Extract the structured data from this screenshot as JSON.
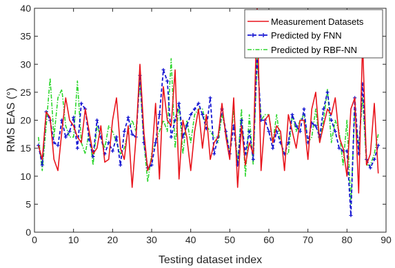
{
  "chart_data": {
    "type": "line",
    "xlabel": "Testing dataset index",
    "ylabel": "RMS EAS (°)",
    "xlim": [
      0,
      90
    ],
    "ylim": [
      0,
      40
    ],
    "xticks": [
      0,
      10,
      20,
      30,
      40,
      50,
      60,
      70,
      80,
      90
    ],
    "yticks": [
      0,
      5,
      10,
      15,
      20,
      25,
      30,
      35,
      40
    ],
    "grid": false,
    "legend_position": "top-right",
    "series": [
      {
        "name": "Measurement Datasets",
        "color": "#e8141c",
        "style": "solid",
        "x": [
          1,
          2,
          3,
          4,
          5,
          6,
          7,
          8,
          9,
          10,
          11,
          12,
          13,
          14,
          15,
          16,
          17,
          18,
          19,
          20,
          21,
          22,
          23,
          24,
          25,
          26,
          27,
          28,
          29,
          30,
          31,
          32,
          33,
          34,
          35,
          36,
          37,
          38,
          39,
          40,
          41,
          42,
          43,
          44,
          45,
          46,
          47,
          48,
          49,
          50,
          51,
          52,
          53,
          54,
          55,
          56,
          57,
          58,
          59,
          60,
          61,
          62,
          63,
          64,
          65,
          66,
          67,
          68,
          69,
          70,
          71,
          72,
          73,
          74,
          75,
          76,
          77,
          78,
          79,
          80,
          81,
          82,
          83,
          84,
          85,
          86,
          87,
          88
        ],
        "y": [
          15.5,
          13,
          21.5,
          20.5,
          13,
          11,
          18,
          24,
          20,
          19,
          17,
          16,
          22,
          18,
          14,
          15,
          19,
          12.5,
          13,
          20,
          24,
          15,
          13,
          19,
          8,
          17,
          30,
          18,
          11,
          13,
          23,
          9.5,
          26,
          20,
          19,
          29,
          9.5,
          20,
          17,
          11,
          18,
          22,
          15,
          21,
          13,
          16,
          17,
          23,
          17,
          13,
          24,
          8,
          19,
          12,
          16,
          14,
          40,
          11,
          20,
          21,
          16,
          19,
          18,
          11,
          21,
          18,
          15,
          20,
          20,
          13,
          22,
          25,
          16,
          19,
          22,
          21,
          24,
          17,
          15,
          10,
          22,
          24,
          7,
          34,
          12,
          14,
          23,
          10.5
        ]
      },
      {
        "name": "Predicted by FNN",
        "color": "#1414d2",
        "style": "dashed-markers",
        "x": [
          1,
          2,
          3,
          4,
          5,
          6,
          7,
          8,
          9,
          10,
          11,
          12,
          13,
          14,
          15,
          16,
          17,
          18,
          19,
          20,
          21,
          22,
          23,
          24,
          25,
          26,
          27,
          28,
          29,
          30,
          31,
          32,
          33,
          34,
          35,
          36,
          37,
          38,
          39,
          40,
          41,
          42,
          43,
          44,
          45,
          46,
          47,
          48,
          49,
          50,
          51,
          52,
          53,
          54,
          55,
          56,
          57,
          58,
          59,
          60,
          61,
          62,
          63,
          64,
          65,
          66,
          67,
          68,
          69,
          70,
          71,
          72,
          73,
          74,
          75,
          76,
          77,
          78,
          79,
          80,
          81,
          82,
          83,
          84,
          85,
          86,
          87,
          88
        ],
        "y": [
          15.5,
          12,
          21.5,
          20,
          16,
          15.5,
          20,
          17,
          18,
          20.5,
          15,
          23,
          22,
          16.5,
          13.5,
          20,
          17,
          14,
          16,
          14.5,
          17,
          12,
          18,
          20.5,
          17.5,
          17,
          28,
          16,
          11.5,
          12,
          16,
          21,
          29,
          27,
          17,
          20,
          23,
          17,
          19,
          21,
          22,
          23,
          21,
          18.5,
          24,
          14,
          17,
          22,
          18,
          14,
          19,
          12,
          20,
          14,
          18,
          13,
          32,
          20,
          20,
          18,
          15,
          18,
          16,
          14,
          16,
          21,
          19,
          18,
          22,
          16,
          19.5,
          19,
          17,
          22,
          25,
          20,
          18,
          15,
          14.5,
          14.5,
          3,
          24,
          14,
          26.5,
          13,
          11.5,
          13,
          15.5
        ]
      },
      {
        "name": "Predicted by RBF-NN",
        "color": "#2ed62e",
        "style": "dash-dot",
        "x": [
          1,
          2,
          3,
          4,
          5,
          6,
          7,
          8,
          9,
          10,
          11,
          12,
          13,
          14,
          15,
          16,
          17,
          18,
          19,
          20,
          21,
          22,
          23,
          24,
          25,
          26,
          27,
          28,
          29,
          30,
          31,
          32,
          33,
          34,
          35,
          36,
          37,
          38,
          39,
          40,
          41,
          42,
          43,
          44,
          45,
          46,
          47,
          48,
          49,
          50,
          51,
          52,
          53,
          54,
          55,
          56,
          57,
          58,
          59,
          60,
          61,
          62,
          63,
          64,
          65,
          66,
          67,
          68,
          69,
          70,
          71,
          72,
          73,
          74,
          75,
          76,
          77,
          78,
          79,
          80,
          81,
          82,
          83,
          84,
          85,
          86,
          87,
          88
        ],
        "y": [
          17,
          11,
          19,
          27.5,
          17,
          24,
          25.5,
          19,
          17,
          17,
          27,
          16,
          14,
          18,
          12,
          19,
          17,
          15,
          19,
          18,
          16,
          14,
          15,
          18,
          20,
          18,
          27,
          16,
          9,
          14,
          16,
          18,
          20,
          18,
          31,
          15,
          23,
          14,
          20,
          16,
          21,
          22,
          22,
          19,
          18,
          17,
          16,
          21,
          18,
          14,
          22,
          12,
          22,
          10,
          21,
          12,
          31,
          20,
          21,
          21,
          16,
          21,
          16,
          14,
          14,
          21,
          18,
          20,
          21,
          16,
          17,
          22,
          16,
          20,
          25.5,
          16,
          20,
          18,
          12,
          20,
          5,
          22,
          15,
          24,
          12,
          12,
          14,
          17.5
        ]
      }
    ]
  }
}
